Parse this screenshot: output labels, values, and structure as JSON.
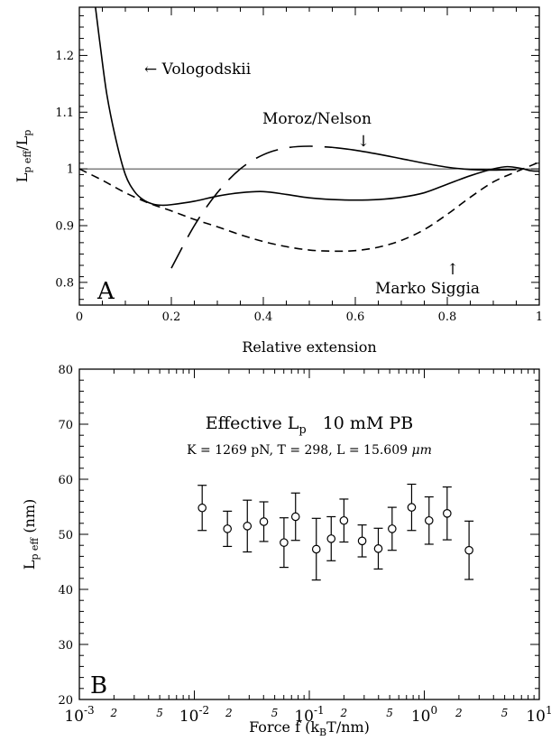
{
  "chart_data": [
    {
      "panel_label": "A",
      "type": "line",
      "xlabel": "Relative extension",
      "ylabel": "L_p eff/L_p",
      "ylabel_main": "L",
      "ylabel_sub": "p eff",
      "ylabel_div": "/L",
      "ylabel_sub2": "p",
      "xlim": [
        0,
        1
      ],
      "ylim": [
        0.76,
        1.285
      ],
      "x_ticks": [
        0,
        0.2,
        0.4,
        0.6,
        0.8,
        1
      ],
      "x_tick_labels": [
        "0",
        "0.2",
        "0.4",
        "0.6",
        "0.8",
        "1"
      ],
      "y_ticks": [
        0.8,
        0.9,
        1.0,
        1.1,
        1.2
      ],
      "y_tick_labels": [
        "0.8",
        "0.9",
        "1",
        "1.1",
        "1.2"
      ],
      "reference_line_y": 1.0,
      "annotations": {
        "vologodskii": "← Vologodskii",
        "moroz_nelson": "Moroz/Nelson",
        "moroz_arrow": "↓",
        "marko_siggia": "Marko Siggia",
        "marko_arrow": "↑"
      },
      "series": [
        {
          "name": "Vologodskii",
          "style": "solid",
          "x": [
            0.035,
            0.045,
            0.06,
            0.08,
            0.1,
            0.12,
            0.14,
            0.16,
            0.18,
            0.2,
            0.25,
            0.3,
            0.35,
            0.4,
            0.45,
            0.5,
            0.55,
            0.6,
            0.65,
            0.7,
            0.75,
            0.8,
            0.85,
            0.9,
            0.93,
            0.96,
            0.98,
            1.0
          ],
          "y": [
            1.285,
            1.22,
            1.13,
            1.05,
            0.99,
            0.96,
            0.945,
            0.938,
            0.936,
            0.937,
            0.943,
            0.952,
            0.958,
            0.96,
            0.955,
            0.949,
            0.946,
            0.945,
            0.946,
            0.95,
            0.958,
            0.973,
            0.988,
            1.0,
            1.004,
            1.001,
            0.997,
            0.996
          ]
        },
        {
          "name": "Marko Siggia",
          "style": "dashed",
          "x": [
            0.0,
            0.05,
            0.1,
            0.15,
            0.2,
            0.25,
            0.3,
            0.35,
            0.4,
            0.45,
            0.5,
            0.55,
            0.6,
            0.65,
            0.7,
            0.75,
            0.8,
            0.85,
            0.9,
            0.95,
            1.0
          ],
          "y": [
            1.0,
            0.98,
            0.958,
            0.94,
            0.926,
            0.911,
            0.898,
            0.884,
            0.872,
            0.863,
            0.857,
            0.855,
            0.856,
            0.862,
            0.874,
            0.893,
            0.92,
            0.95,
            0.977,
            0.995,
            1.012
          ]
        },
        {
          "name": "Moroz/Nelson",
          "style": "dashed-solid",
          "solid_from_x": 0.58,
          "x": [
            0.2,
            0.25,
            0.3,
            0.35,
            0.4,
            0.45,
            0.5,
            0.55,
            0.6,
            0.65,
            0.7,
            0.75,
            0.8,
            0.85,
            0.9,
            0.95
          ],
          "y": [
            0.825,
            0.9,
            0.958,
            1.0,
            1.025,
            1.037,
            1.04,
            1.038,
            1.033,
            1.026,
            1.018,
            1.01,
            1.003,
            0.999,
            0.998,
            0.999
          ]
        }
      ]
    },
    {
      "panel_label": "B",
      "type": "scatter",
      "title": "Effective L_p  10 mM PB",
      "title_main": "Effective L",
      "title_sub": "p",
      "title_rest": "10 mM PB",
      "subtitle": "K = 1269 pN, T = 298, L = 15.609 μm",
      "subtitle_text": "K = 1269 pN, T = 298, L = 15.609 ",
      "subtitle_unit": "μm",
      "xlabel": "Force f (k_BT/nm)",
      "xlabel_pre": "Force f (k",
      "xlabel_sub": "B",
      "xlabel_post": "T/nm)",
      "ylabel": "L_p eff (nm)",
      "ylabel_main": "L",
      "ylabel_sub": "p eff",
      "ylabel_rest": " (nm)",
      "x_scale": "log",
      "xlim": [
        0.001,
        10
      ],
      "ylim": [
        20,
        80
      ],
      "y_ticks": [
        20,
        30,
        40,
        50,
        60,
        70,
        80
      ],
      "y_tick_labels": [
        "20",
        "30",
        "40",
        "50",
        "60",
        "70",
        "80"
      ],
      "x_decades": [
        {
          "value": 0.001,
          "base": "10",
          "exp": "-3"
        },
        {
          "value": 0.01,
          "base": "10",
          "exp": "-2"
        },
        {
          "value": 0.1,
          "base": "10",
          "exp": "-1"
        },
        {
          "value": 1,
          "base": "10",
          "exp": "0"
        },
        {
          "value": 10,
          "base": "10",
          "exp": "1"
        }
      ],
      "x_minor_labels": [
        {
          "value": 0.002,
          "label": "2"
        },
        {
          "value": 0.005,
          "label": "5"
        },
        {
          "value": 0.02,
          "label": "2"
        },
        {
          "value": 0.05,
          "label": "5"
        },
        {
          "value": 0.2,
          "label": "2"
        },
        {
          "value": 0.5,
          "label": "5"
        },
        {
          "value": 2,
          "label": "2"
        },
        {
          "value": 5,
          "label": "5"
        }
      ],
      "points": {
        "x": [
          0.0117,
          0.0194,
          0.0289,
          0.0402,
          0.0602,
          0.0759,
          0.115,
          0.155,
          0.2,
          0.288,
          0.398,
          0.525,
          0.776,
          1.1,
          1.58,
          2.45
        ],
        "y": [
          54.8,
          51.0,
          51.5,
          52.3,
          48.5,
          53.2,
          47.3,
          49.2,
          52.5,
          48.8,
          47.4,
          51.0,
          54.9,
          52.5,
          53.8,
          47.1
        ],
        "err": [
          4.1,
          3.2,
          4.7,
          3.6,
          4.5,
          4.3,
          5.6,
          4.0,
          3.9,
          2.9,
          3.7,
          3.9,
          4.2,
          4.3,
          4.8,
          5.3
        ]
      }
    }
  ]
}
